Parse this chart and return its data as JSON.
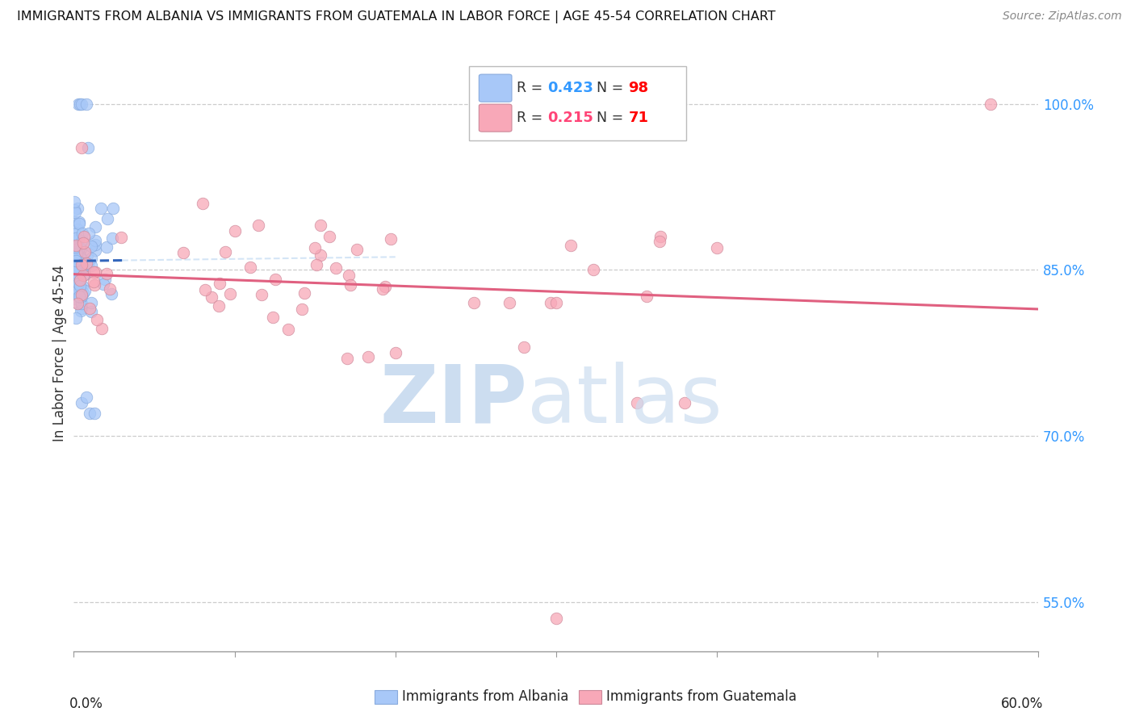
{
  "title": "IMMIGRANTS FROM ALBANIA VS IMMIGRANTS FROM GUATEMALA IN LABOR FORCE | AGE 45-54 CORRELATION CHART",
  "source": "Source: ZipAtlas.com",
  "ylabel": "In Labor Force | Age 45-54",
  "y_ticks": [
    0.55,
    0.7,
    0.85,
    1.0
  ],
  "y_tick_labels": [
    "55.0%",
    "70.0%",
    "85.0%",
    "100.0%"
  ],
  "x_range": [
    0.0,
    0.6
  ],
  "y_range": [
    0.505,
    1.045
  ],
  "albania_R": 0.423,
  "albania_N": 98,
  "guatemala_R": 0.215,
  "guatemala_N": 71,
  "albania_color": "#a8c8f8",
  "albania_line_color": "#3366bb",
  "guatemala_color": "#f8a8b8",
  "guatemala_line_color": "#e06080",
  "legend_R_color_albania": "#3399ff",
  "legend_R_color_guatemala": "#ff4477",
  "legend_N_color": "#ff0000",
  "watermark_zip_color": "#ccddf0",
  "watermark_atlas_color": "#ccddf0"
}
